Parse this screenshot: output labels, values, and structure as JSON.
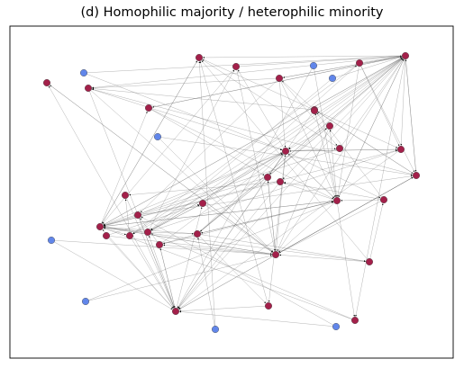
{
  "figure": {
    "title": "(d) Homophilic majority / heterophilic minority"
  },
  "colors": {
    "majority": "#a3204a",
    "minority": "#6186ea",
    "edge": "#666666",
    "frame": "#000000"
  },
  "graph": {
    "nodes": [
      {
        "id": 0,
        "group": "majority"
      },
      {
        "id": 1,
        "group": "majority"
      },
      {
        "id": 2,
        "group": "majority"
      },
      {
        "id": 3,
        "group": "majority"
      },
      {
        "id": 4,
        "group": "majority"
      },
      {
        "id": 5,
        "group": "majority"
      },
      {
        "id": 6,
        "group": "majority"
      },
      {
        "id": 7,
        "group": "majority"
      },
      {
        "id": 8,
        "group": "majority"
      },
      {
        "id": 9,
        "group": "majority"
      },
      {
        "id": 10,
        "group": "majority"
      },
      {
        "id": 11,
        "group": "majority"
      },
      {
        "id": 12,
        "group": "majority"
      },
      {
        "id": 13,
        "group": "majority"
      },
      {
        "id": 14,
        "group": "majority"
      },
      {
        "id": 15,
        "group": "majority"
      },
      {
        "id": 16,
        "group": "majority"
      },
      {
        "id": 17,
        "group": "majority"
      },
      {
        "id": 18,
        "group": "majority"
      },
      {
        "id": 19,
        "group": "majority"
      },
      {
        "id": 20,
        "group": "majority"
      },
      {
        "id": 21,
        "group": "majority"
      },
      {
        "id": 22,
        "group": "majority"
      },
      {
        "id": 23,
        "group": "majority"
      },
      {
        "id": 24,
        "group": "majority"
      },
      {
        "id": 25,
        "group": "majority"
      },
      {
        "id": 26,
        "group": "majority"
      },
      {
        "id": 27,
        "group": "majority"
      },
      {
        "id": 28,
        "group": "majority"
      },
      {
        "id": 29,
        "group": "majority"
      },
      {
        "id": 30,
        "group": "majority"
      },
      {
        "id": 31,
        "group": "majority"
      },
      {
        "id": 32,
        "group": "majority"
      },
      {
        "id": 33,
        "group": "minority"
      },
      {
        "id": 34,
        "group": "minority"
      },
      {
        "id": 35,
        "group": "minority"
      },
      {
        "id": 36,
        "group": "minority"
      },
      {
        "id": 37,
        "group": "minority"
      },
      {
        "id": 38,
        "group": "minority"
      },
      {
        "id": 39,
        "group": "minority"
      },
      {
        "id": 40,
        "group": "minority"
      }
    ],
    "edges": [
      [
        6,
        0
      ],
      [
        3,
        0
      ],
      [
        4,
        0
      ],
      [
        5,
        0
      ],
      [
        25,
        0
      ],
      [
        20,
        0
      ],
      [
        15,
        0
      ],
      [
        33,
        0
      ],
      [
        39,
        0
      ],
      [
        17,
        0
      ],
      [
        31,
        0
      ],
      [
        10,
        0
      ],
      [
        12,
        0
      ],
      [
        19,
        0
      ],
      [
        9,
        0
      ],
      [
        2,
        1
      ],
      [
        5,
        1
      ],
      [
        23,
        1
      ],
      [
        7,
        1
      ],
      [
        10,
        1
      ],
      [
        16,
        1
      ],
      [
        18,
        1
      ],
      [
        25,
        1
      ],
      [
        14,
        1
      ],
      [
        35,
        1
      ],
      [
        26,
        1
      ],
      [
        21,
        1
      ],
      [
        28,
        1
      ],
      [
        36,
        1
      ],
      [
        1,
        3
      ],
      [
        2,
        3
      ],
      [
        4,
        3
      ],
      [
        6,
        3
      ],
      [
        10,
        3
      ],
      [
        11,
        3
      ],
      [
        13,
        3
      ],
      [
        24,
        3
      ],
      [
        21,
        3
      ],
      [
        20,
        3
      ],
      [
        12,
        3
      ],
      [
        1,
        6
      ],
      [
        2,
        6
      ],
      [
        5,
        6
      ],
      [
        7,
        6
      ],
      [
        11,
        6
      ],
      [
        9,
        6
      ],
      [
        13,
        6
      ],
      [
        14,
        6
      ],
      [
        24,
        6
      ],
      [
        22,
        6
      ],
      [
        29,
        6
      ],
      [
        16,
        6
      ],
      [
        23,
        6
      ],
      [
        34,
        6
      ],
      [
        40,
        6
      ],
      [
        27,
        6
      ],
      [
        3,
        2
      ],
      [
        6,
        2
      ],
      [
        7,
        2
      ],
      [
        12,
        2
      ],
      [
        13,
        2
      ],
      [
        22,
        2
      ],
      [
        24,
        2
      ],
      [
        37,
        2
      ],
      [
        18,
        2
      ],
      [
        27,
        2
      ],
      [
        0,
        7
      ],
      [
        1,
        7
      ],
      [
        2,
        7
      ],
      [
        3,
        7
      ],
      [
        4,
        7
      ],
      [
        6,
        7
      ],
      [
        11,
        7
      ],
      [
        13,
        7
      ],
      [
        16,
        7
      ],
      [
        17,
        7
      ],
      [
        23,
        7
      ],
      [
        8,
        7
      ],
      [
        29,
        7
      ],
      [
        30,
        7
      ],
      [
        3,
        4
      ],
      [
        6,
        4
      ],
      [
        11,
        4
      ],
      [
        22,
        4
      ],
      [
        8,
        4
      ],
      [
        0,
        5
      ],
      [
        1,
        5
      ],
      [
        6,
        5
      ],
      [
        22,
        5
      ],
      [
        20,
        5
      ],
      [
        9,
        5
      ],
      [
        6,
        8
      ],
      [
        7,
        8
      ],
      [
        26,
        8
      ],
      [
        38,
        8
      ],
      [
        29,
        8
      ],
      [
        31,
        8
      ],
      [
        5,
        9
      ],
      [
        2,
        9
      ],
      [
        18,
        9
      ],
      [
        32,
        9
      ],
      [
        5,
        10
      ],
      [
        6,
        10
      ],
      [
        9,
        10
      ],
      [
        24,
        10
      ],
      [
        0,
        11
      ],
      [
        3,
        11
      ],
      [
        14,
        11
      ],
      [
        30,
        11
      ],
      [
        0,
        12
      ],
      [
        13,
        12
      ],
      [
        1,
        12
      ],
      [
        2,
        13
      ],
      [
        11,
        13
      ],
      [
        6,
        13
      ],
      [
        21,
        13
      ],
      [
        0,
        14
      ],
      [
        11,
        14
      ],
      [
        25,
        14
      ],
      [
        3,
        15
      ],
      [
        6,
        15
      ],
      [
        7,
        15
      ],
      [
        1,
        16
      ],
      [
        3,
        16
      ],
      [
        27,
        16
      ],
      [
        2,
        17
      ],
      [
        18,
        17
      ],
      [
        6,
        17
      ],
      [
        3,
        18
      ],
      [
        26,
        18
      ],
      [
        15,
        19
      ],
      [
        17,
        19
      ],
      [
        12,
        20
      ],
      [
        24,
        20
      ],
      [
        2,
        21
      ],
      [
        13,
        21
      ],
      [
        14,
        22
      ],
      [
        15,
        22
      ],
      [
        3,
        23
      ],
      [
        11,
        23
      ],
      [
        6,
        24
      ],
      [
        9,
        24
      ],
      [
        7,
        26
      ],
      [
        13,
        26
      ],
      [
        6,
        27
      ],
      [
        7,
        27
      ],
      [
        0,
        28
      ],
      [
        1,
        28
      ],
      [
        3,
        29
      ],
      [
        24,
        29
      ],
      [
        6,
        30
      ],
      [
        2,
        30
      ],
      [
        3,
        31
      ],
      [
        13,
        31
      ],
      [
        33,
        2
      ],
      [
        34,
        3
      ],
      [
        35,
        5
      ],
      [
        36,
        0
      ],
      [
        37,
        1
      ],
      [
        38,
        13
      ],
      [
        39,
        20
      ],
      [
        40,
        11
      ]
    ]
  }
}
